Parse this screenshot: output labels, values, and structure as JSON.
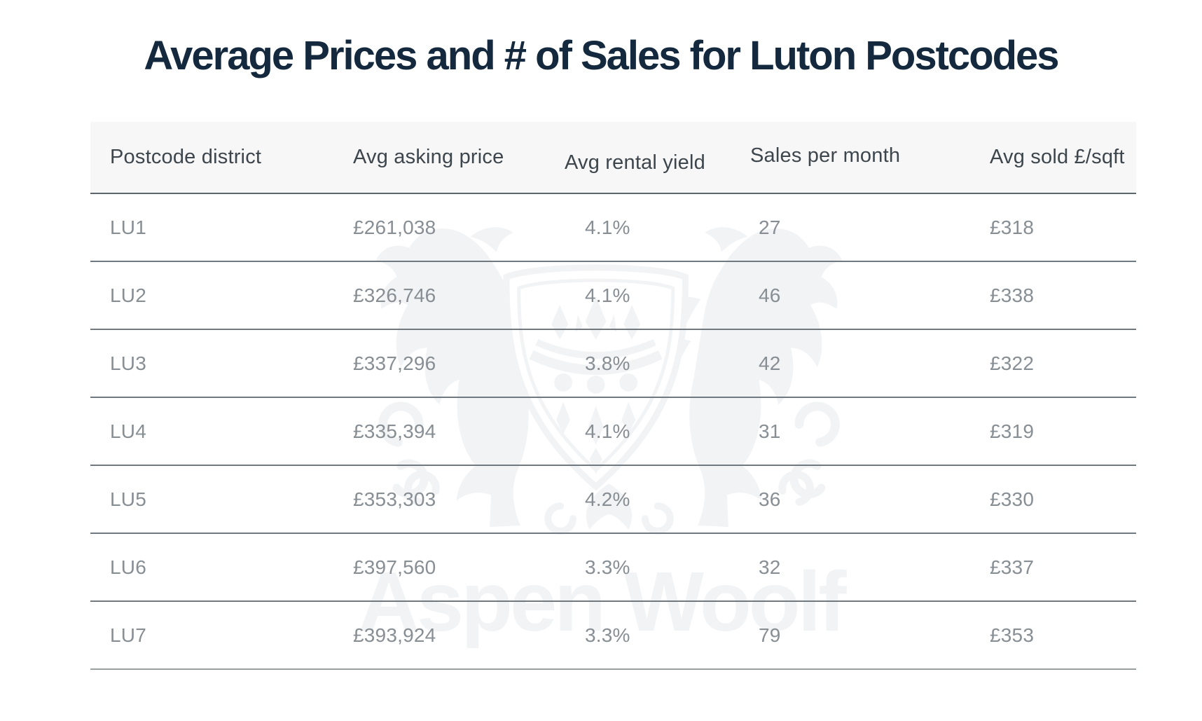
{
  "title": "Average Prices and # of Sales for Luton Postcodes",
  "watermark": {
    "brand": "Aspen Woolf"
  },
  "table": {
    "columns": [
      "Postcode district",
      "Avg asking price",
      "Avg rental yield",
      "Sales per month",
      "Avg sold £/sqft"
    ],
    "column_ids": [
      "postcode-district",
      "avg-asking-price",
      "avg-rental-yield",
      "sales-per-month",
      "avg-sold-per-sqft"
    ],
    "rows": [
      [
        "LU1",
        "£261,038",
        "4.1%",
        "27",
        "£318"
      ],
      [
        "LU2",
        "£326,746",
        "4.1%",
        "46",
        "£338"
      ],
      [
        "LU3",
        "£337,296",
        "3.8%",
        "42",
        "£322"
      ],
      [
        "LU4",
        "£335,394",
        "4.1%",
        "31",
        "£319"
      ],
      [
        "LU5",
        "£353,303",
        "4.2%",
        "36",
        "£330"
      ],
      [
        "LU6",
        "£397,560",
        "3.3%",
        "32",
        "£337"
      ],
      [
        "LU7",
        "£393,924",
        "3.3%",
        "79",
        "£353"
      ]
    ]
  },
  "chart_data": {
    "type": "table",
    "title": "Average Prices and # of Sales for Luton Postcodes",
    "columns": [
      "Postcode district",
      "Avg asking price",
      "Avg rental yield",
      "Sales per month",
      "Avg sold £/sqft"
    ],
    "rows": [
      {
        "postcode_district": "LU1",
        "avg_asking_price_gbp": 261038,
        "avg_rental_yield_pct": 4.1,
        "sales_per_month": 27,
        "avg_sold_gbp_per_sqft": 318
      },
      {
        "postcode_district": "LU2",
        "avg_asking_price_gbp": 326746,
        "avg_rental_yield_pct": 4.1,
        "sales_per_month": 46,
        "avg_sold_gbp_per_sqft": 338
      },
      {
        "postcode_district": "LU3",
        "avg_asking_price_gbp": 337296,
        "avg_rental_yield_pct": 3.8,
        "sales_per_month": 42,
        "avg_sold_gbp_per_sqft": 322
      },
      {
        "postcode_district": "LU4",
        "avg_asking_price_gbp": 335394,
        "avg_rental_yield_pct": 4.1,
        "sales_per_month": 31,
        "avg_sold_gbp_per_sqft": 319
      },
      {
        "postcode_district": "LU5",
        "avg_asking_price_gbp": 353303,
        "avg_rental_yield_pct": 4.2,
        "sales_per_month": 36,
        "avg_sold_gbp_per_sqft": 330
      },
      {
        "postcode_district": "LU6",
        "avg_asking_price_gbp": 397560,
        "avg_rental_yield_pct": 3.3,
        "sales_per_month": 32,
        "avg_sold_gbp_per_sqft": 337
      },
      {
        "postcode_district": "LU7",
        "avg_asking_price_gbp": 393924,
        "avg_rental_yield_pct": 3.3,
        "sales_per_month": 79,
        "avg_sold_gbp_per_sqft": 353
      }
    ]
  },
  "colors": {
    "title": "#14293d",
    "header_text": "#3e464d",
    "cell_text": "#878e94",
    "header_bg": "#f7f7f7",
    "header_border": "#5c666d",
    "row_divider": "#6f797f",
    "bottom_border": "#98a19e",
    "watermark": "#f2f3f5",
    "background": "#ffffff"
  }
}
